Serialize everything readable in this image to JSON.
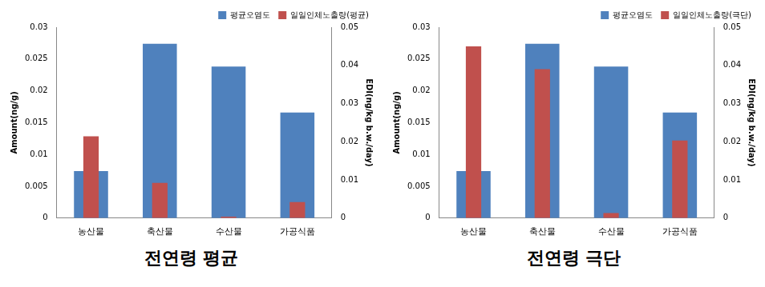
{
  "chart_data": [
    {
      "type": "bar",
      "title": "전연령 평균",
      "categories": [
        "농산물",
        "축산물",
        "수산물",
        "가공식품"
      ],
      "series": [
        {
          "name": "평균오염도",
          "color": "#4f81bd",
          "axis": "y",
          "values": [
            0.0074,
            0.0274,
            0.0238,
            0.0166
          ]
        },
        {
          "name": "일일인체노출량(평균)",
          "color": "#c0504d",
          "axis": "y2",
          "values": [
            0.0214,
            0.0092,
            0.0004,
            0.0042
          ]
        }
      ],
      "y_label": "Amount(ng/g)",
      "y2_label": "EDI(ng/kg b.w./day)",
      "ylim": [
        0,
        0.03
      ],
      "yticks": [
        0,
        0.005,
        0.01,
        0.015,
        0.02,
        0.025,
        0.03
      ],
      "y2lim": [
        0,
        0.05
      ],
      "y2ticks": [
        0,
        0.01,
        0.02,
        0.03,
        0.04,
        0.05
      ],
      "grid": false,
      "legend": "upper right"
    },
    {
      "type": "bar",
      "title": "전연령 극단",
      "categories": [
        "농산물",
        "축산물",
        "수산물",
        "가공식품"
      ],
      "series": [
        {
          "name": "평균오염도",
          "color": "#4f81bd",
          "axis": "y",
          "values": [
            0.0074,
            0.0274,
            0.0238,
            0.0166
          ]
        },
        {
          "name": "일일인체노출량(극단)",
          "color": "#c0504d",
          "axis": "y2",
          "values": [
            0.045,
            0.039,
            0.0013,
            0.0203
          ]
        }
      ],
      "y_label": "Amount(ng/g)",
      "y2_label": "EDI(ng/kg b.w./day)",
      "ylim": [
        0,
        0.03
      ],
      "yticks": [
        0,
        0.005,
        0.01,
        0.015,
        0.02,
        0.025,
        0.03
      ],
      "y2lim": [
        0,
        0.05
      ],
      "y2ticks": [
        0,
        0.01,
        0.02,
        0.03,
        0.04,
        0.05
      ],
      "grid": false,
      "legend": "upper right"
    }
  ]
}
